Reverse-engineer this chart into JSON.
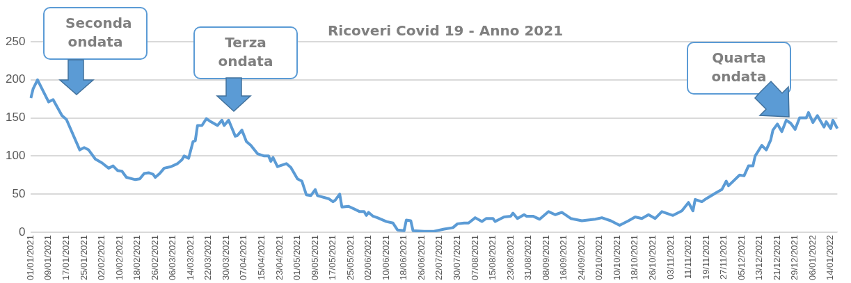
{
  "chart_data": {
    "type": "line",
    "title": "Ricoveri Covid 19 - Anno 2021",
    "annotations": [
      "Seconda ondata",
      "Terza ondata",
      "Quarta ondata"
    ],
    "categories": [
      "01/01/2021",
      null,
      null,
      null,
      null,
      null,
      null,
      null,
      "09/01/2021",
      null,
      null,
      null,
      null,
      null,
      null,
      null,
      "17/01/2021",
      null,
      null,
      null,
      null,
      null,
      null,
      null,
      "25/01/2021",
      null,
      null,
      null,
      null,
      null,
      null,
      null,
      "02/02/2021",
      null,
      null,
      null,
      null,
      null,
      null,
      null,
      "10/02/2021",
      null,
      null,
      null,
      null,
      null,
      null,
      null,
      "18/02/2021",
      null,
      null,
      null,
      null,
      null,
      null,
      null,
      "26/02/2021",
      null,
      null,
      null,
      null,
      null,
      null,
      null,
      "06/03/2021",
      null,
      null,
      null,
      null,
      null,
      null,
      null,
      "14/03/2021",
      null,
      null,
      null,
      null,
      null,
      null,
      null,
      "22/03/2021",
      null,
      null,
      null,
      null,
      null,
      null,
      null,
      "30/03/2021",
      null,
      null,
      null,
      null,
      null,
      null,
      null,
      "07/04/2021",
      null,
      null,
      null,
      null,
      null,
      null,
      null,
      "15/04/2021",
      null,
      null,
      null,
      null,
      null,
      null,
      null,
      "23/04/2021",
      null,
      null,
      null,
      null,
      null,
      null,
      null,
      "01/05/2021",
      null,
      null,
      null,
      null,
      null,
      null,
      null,
      "09/05/2021",
      null,
      null,
      null,
      null,
      null,
      null,
      null,
      "17/05/2021",
      null,
      null,
      null,
      null,
      null,
      null,
      null,
      "25/05/2021",
      null,
      null,
      null,
      null,
      null,
      null,
      null,
      "02/06/2021",
      null,
      null,
      null,
      null,
      null,
      null,
      null,
      "10/06/2021",
      null,
      null,
      null,
      null,
      null,
      null,
      null,
      "18/06/2021",
      null,
      null,
      null,
      null,
      null,
      null,
      null,
      "26/06/2021",
      null,
      null,
      null,
      null,
      null,
      null,
      null,
      "22/07/2021",
      null,
      null,
      null,
      null,
      null,
      null,
      null,
      "30/07/2021",
      null,
      null,
      null,
      null,
      null,
      null,
      null,
      "07/08/2021",
      null,
      null,
      null,
      null,
      null,
      null,
      null,
      "15/08/2021",
      null,
      null,
      null,
      null,
      null,
      null,
      null,
      "23/08/2021",
      null,
      null,
      null,
      null,
      null,
      null,
      null,
      "31/08/2021",
      null,
      null,
      null,
      null,
      null,
      null,
      null,
      "08/09/2021",
      null,
      null,
      null,
      null,
      null,
      null,
      null,
      "16/09/2021",
      null,
      null,
      null,
      null,
      null,
      null,
      null,
      "24/09/2021",
      null,
      null,
      null,
      null,
      null,
      null,
      null,
      "02/10/2021",
      null,
      null,
      null,
      null,
      null,
      null,
      null,
      "10/10/2021",
      null,
      null,
      null,
      null,
      null,
      null,
      null,
      "18/10/2021",
      null,
      null,
      null,
      null,
      null,
      null,
      null,
      "26/10/2021",
      null,
      null,
      null,
      null,
      null,
      null,
      null,
      "03/11/2021",
      null,
      null,
      null,
      null,
      null,
      null,
      null,
      "11/11/2021",
      null,
      null,
      null,
      null,
      null,
      null,
      null,
      "19/11/2021",
      null,
      null,
      null,
      null,
      null,
      null,
      null,
      "27/11/2021",
      null,
      null,
      null,
      null,
      null,
      null,
      null,
      "05/12/2021",
      null,
      null,
      null,
      null,
      null,
      null,
      null,
      "13/12/2021",
      null,
      null,
      null,
      null,
      null,
      null,
      null,
      "21/12/2021",
      null,
      null,
      null,
      null,
      null,
      null,
      null,
      "29/12/2021",
      null,
      null,
      null,
      null,
      null,
      null,
      null,
      "06/01/2022",
      null,
      null,
      null,
      null,
      null,
      null,
      null,
      "14/01/2022",
      null,
      null,
      null
    ],
    "series": [
      {
        "color": "#5b9bd5",
        "values": [
          176,
          188,
          null,
          200,
          null,
          null,
          null,
          null,
          171,
          null,
          174,
          null,
          null,
          null,
          153,
          null,
          148,
          null,
          null,
          null,
          null,
          null,
          108,
          null,
          111,
          null,
          108,
          null,
          null,
          96,
          null,
          null,
          91,
          null,
          null,
          84,
          null,
          87,
          null,
          81,
          null,
          80,
          null,
          72,
          null,
          null,
          null,
          69,
          null,
          70,
          null,
          77,
          null,
          78,
          null,
          76,
          72,
          null,
          77,
          null,
          84,
          null,
          null,
          86,
          null,
          null,
          90,
          null,
          95,
          100,
          null,
          97,
          null,
          119,
          120,
          140,
          null,
          140,
          null,
          149,
          null,
          145,
          null,
          null,
          140,
          null,
          147,
          140,
          null,
          147,
          140,
          null,
          126,
          127,
          null,
          134,
          null,
          119,
          null,
          114,
          null,
          null,
          103,
          null,
          null,
          100,
          null,
          100,
          93,
          98,
          null,
          86,
          null,
          null,
          null,
          90,
          null,
          85,
          null,
          null,
          70,
          null,
          67,
          null,
          49,
          null,
          48,
          null,
          56,
          48,
          null,
          null,
          null,
          null,
          44,
          null,
          40,
          42,
          null,
          50,
          33,
          null,
          null,
          34,
          null,
          null,
          null,
          null,
          27,
          null,
          27,
          22,
          26,
          null,
          21,
          null,
          19,
          null,
          null,
          null,
          14,
          null,
          null,
          12,
          null,
          3,
          null,
          null,
          2,
          16,
          null,
          15,
          2,
          null,
          null,
          null,
          null,
          1,
          null,
          null,
          null,
          1,
          null,
          null,
          null,
          null,
          4,
          null,
          null,
          null,
          6,
          null,
          11,
          null,
          null,
          12,
          null,
          12,
          null,
          null,
          19,
          null,
          null,
          14,
          null,
          18,
          null,
          null,
          18,
          14,
          null,
          null,
          null,
          20,
          null,
          null,
          21,
          25,
          null,
          18,
          null,
          null,
          23,
          21,
          null,
          null,
          21,
          null,
          null,
          17,
          null,
          null,
          null,
          27,
          null,
          null,
          23,
          null,
          null,
          26,
          null,
          null,
          null,
          18,
          null,
          null,
          null,
          null,
          15,
          null,
          null,
          null,
          null,
          null,
          17,
          null,
          null,
          19,
          null,
          null,
          null,
          15,
          null,
          null,
          null,
          9,
          null,
          null,
          null,
          15,
          null,
          null,
          20,
          null,
          null,
          18,
          null,
          null,
          23,
          null,
          null,
          18,
          null,
          null,
          27,
          null,
          null,
          null,
          null,
          22,
          null,
          null,
          null,
          28,
          null,
          null,
          39,
          null,
          28,
          43,
          null,
          null,
          40,
          null,
          44,
          null,
          null,
          null,
          51,
          null,
          null,
          56,
          null,
          67,
          61,
          null,
          null,
          null,
          null,
          75,
          null,
          74,
          null,
          87,
          null,
          87,
          100,
          null,
          null,
          114,
          null,
          108,
          null,
          121,
          134,
          null,
          142,
          null,
          132,
          null,
          147,
          null,
          143,
          null,
          135,
          null,
          150,
          null,
          null,
          150,
          157,
          null,
          144,
          null,
          153,
          null,
          null,
          138,
          145,
          null,
          136,
          147,
          null,
          136
        ]
      }
    ],
    "ylim": [
      0,
      250
    ],
    "yticks": [
      0,
      50,
      100,
      150,
      200,
      250
    ],
    "grid": "y",
    "legend": false
  }
}
